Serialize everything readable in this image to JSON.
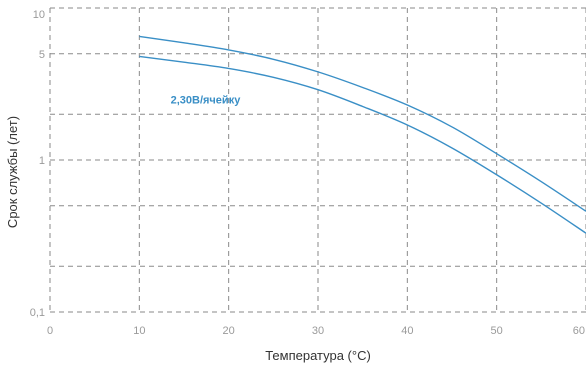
{
  "chart_data": {
    "type": "line",
    "xlabel": "Температура (°C)",
    "ylabel": "Срок службы (лет)",
    "x_ticks": [
      "0",
      "10",
      "20",
      "30",
      "40",
      "50",
      "60"
    ],
    "y_tick_labels": [
      {
        "value": 0.1,
        "label": "0,1"
      },
      {
        "value": 1,
        "label": "1"
      },
      {
        "value": 5,
        "label": "5"
      },
      {
        "value": 10,
        "label": "10"
      }
    ],
    "y_gridlines": [
      0.1,
      0.2,
      0.5,
      1,
      2,
      5,
      10
    ],
    "xlim": [
      0,
      60
    ],
    "ylim": [
      0.1,
      10
    ],
    "y_scale": "log",
    "grid": true,
    "line_color": "#3a8fc6",
    "series": [
      {
        "x": [
          10,
          15,
          20,
          25,
          30,
          35,
          40,
          45,
          50,
          55,
          60
        ],
        "values": [
          6.5,
          5.9,
          5.3,
          4.6,
          3.8,
          3.0,
          2.3,
          1.65,
          1.1,
          0.72,
          0.46
        ]
      },
      {
        "x": [
          10,
          15,
          20,
          25,
          30,
          35,
          40,
          45,
          50,
          55,
          60
        ],
        "values": [
          4.8,
          4.4,
          4.0,
          3.5,
          2.9,
          2.25,
          1.7,
          1.2,
          0.8,
          0.52,
          0.33
        ]
      }
    ],
    "annotation": {
      "text": "2,30В/ячейку",
      "x": 13.5,
      "y": 2.5,
      "color": "#3a8fc6"
    }
  }
}
